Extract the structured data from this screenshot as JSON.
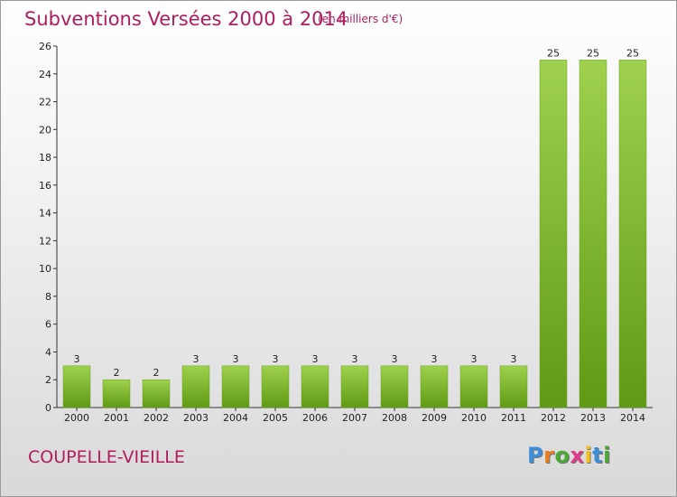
{
  "header": {
    "title": "Subventions Versées 2000 à 2014",
    "unit": "(en milliers d'€)"
  },
  "footer": {
    "commune": "COUPELLE-VIEILLE",
    "logo": "Proxiti",
    "logo_colors": [
      "#3a8fd8",
      "#e87b1e",
      "#4aa838",
      "#e03c8a",
      "#f2c21b",
      "#3a8fd8",
      "#4aa838"
    ]
  },
  "colors": {
    "title": "#b01c5e",
    "bar_top": "#9fd14e",
    "bar_bottom": "#5f9a14"
  },
  "chart_data": {
    "type": "bar",
    "title": "Subventions Versées 2000 à 2014",
    "xlabel": "",
    "ylabel": "",
    "categories": [
      "2000",
      "2001",
      "2002",
      "2003",
      "2004",
      "2005",
      "2006",
      "2007",
      "2008",
      "2009",
      "2010",
      "2011",
      "2012",
      "2013",
      "2014"
    ],
    "values": [
      3,
      2,
      2,
      3,
      3,
      3,
      3,
      3,
      3,
      3,
      3,
      3,
      25,
      25,
      25
    ],
    "ylim": [
      0,
      26
    ],
    "yticks": [
      0,
      2,
      4,
      6,
      8,
      10,
      12,
      14,
      16,
      18,
      20,
      22,
      24,
      26
    ],
    "grid": false,
    "legend": "none"
  }
}
